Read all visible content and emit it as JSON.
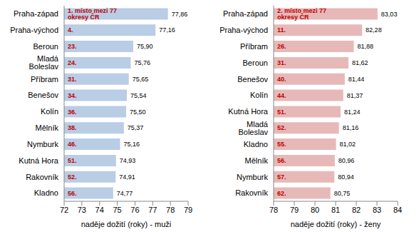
{
  "chart_data": [
    {
      "type": "bar",
      "orientation": "horizontal",
      "xlabel": "naděje dožití (roky) - muži",
      "categories": [
        "Praha-západ",
        "Praha-východ",
        "Beroun",
        "Mladá Boleslav",
        "Příbram",
        "Benešov",
        "Kolín",
        "Mělník",
        "Nymburk",
        "Kutná Hora",
        "Rakovník",
        "Kladno"
      ],
      "values": [
        77.86,
        77.16,
        75.9,
        75.76,
        75.65,
        75.54,
        75.5,
        75.37,
        75.16,
        74.93,
        74.91,
        74.77
      ],
      "value_labels": [
        "77,86",
        "77,16",
        "75,90",
        "75,76",
        "75,65",
        "75,54",
        "75,50",
        "75,37",
        "75,16",
        "74,93",
        "74,91",
        "74,77"
      ],
      "rank_labels": [
        "1. místo mezi 77 okresy ČR",
        "4.",
        "23.",
        "24.",
        "31.",
        "34.",
        "36.",
        "38.",
        "46.",
        "51.",
        "52.",
        "56."
      ],
      "color": "#b9cde5",
      "data_labels": true,
      "grid": false,
      "xlim": [
        72,
        79
      ],
      "xticks": [
        72,
        73,
        74,
        75,
        76,
        77,
        78,
        79
      ]
    },
    {
      "type": "bar",
      "orientation": "horizontal",
      "xlabel": "naděje dožití (roky) - ženy",
      "categories": [
        "Praha-západ",
        "Praha-východ",
        "Příbram",
        "Beroun",
        "Benešov",
        "Kolín",
        "Kutná Hora",
        "Mladá Boleslav",
        "Kladno",
        "Mělník",
        "Nymburk",
        "Rakovník"
      ],
      "values": [
        83.03,
        82.28,
        81.88,
        81.62,
        81.44,
        81.37,
        81.24,
        81.16,
        81.02,
        80.96,
        80.94,
        80.75
      ],
      "value_labels": [
        "83,03",
        "82,28",
        "81,88",
        "81,62",
        "81,44",
        "81,37",
        "81,24",
        "81,16",
        "81,02",
        "80,96",
        "80,94",
        "80,75"
      ],
      "rank_labels": [
        "2. místo mezi 77 okresy ČR",
        "11.",
        "26.",
        "31.",
        "40.",
        "44.",
        "51.",
        "52.",
        "55.",
        "56.",
        "57.",
        "62."
      ],
      "color": "#e6b9b8",
      "data_labels": true,
      "grid": false,
      "xlim": [
        78,
        84
      ],
      "xticks": [
        78,
        79,
        80,
        81,
        82,
        83,
        84
      ]
    }
  ]
}
